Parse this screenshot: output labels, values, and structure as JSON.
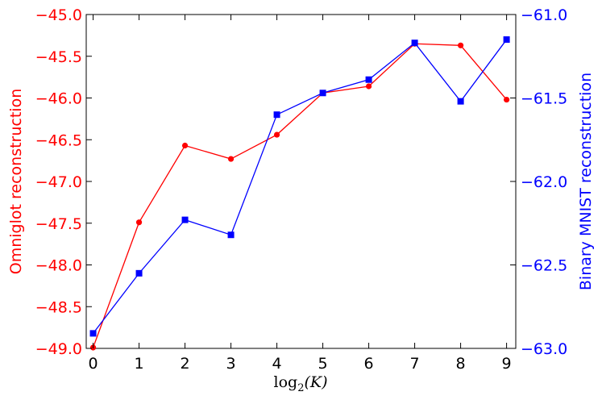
{
  "chart_data": {
    "type": "line",
    "x": [
      0,
      1,
      2,
      3,
      4,
      5,
      6,
      7,
      8,
      9
    ],
    "xlabel_parts": {
      "func": "log",
      "sub": "2",
      "arg": "(K)"
    },
    "xlim": [
      -0.15,
      9.2
    ],
    "x_ticks": [
      "0",
      "1",
      "2",
      "3",
      "4",
      "5",
      "6",
      "7",
      "8",
      "9"
    ],
    "y_left": {
      "label": "Omniglot reconstruction",
      "color": "#ff0000",
      "lim": [
        -49.0,
        -45.0
      ],
      "ticks": [
        "−45.0",
        "−45.5",
        "−46.0",
        "−46.5",
        "−47.0",
        "−47.5",
        "−48.0",
        "−48.5",
        "−49.0"
      ],
      "tick_values": [
        -45.0,
        -45.5,
        -46.0,
        -46.5,
        -47.0,
        -47.5,
        -48.0,
        -48.5,
        -49.0
      ]
    },
    "y_right": {
      "label": "Binary MNIST reconstruction",
      "color": "#0000ff",
      "lim": [
        -63.0,
        -61.0
      ],
      "ticks": [
        "−61.0",
        "−61.5",
        "−62.0",
        "−62.5",
        "−63.0"
      ],
      "tick_values": [
        -61.0,
        -61.5,
        -62.0,
        -62.5,
        -63.0
      ]
    },
    "series": [
      {
        "axis": "left",
        "color": "#ff0000",
        "marker": "circle",
        "values": [
          -48.99,
          -47.49,
          -46.57,
          -46.73,
          -46.44,
          -45.94,
          -45.86,
          -45.35,
          -45.37,
          -46.02
        ]
      },
      {
        "axis": "right",
        "color": "#0000ff",
        "marker": "square",
        "values": [
          -62.91,
          -62.55,
          -62.23,
          -62.32,
          -61.6,
          -61.47,
          -61.39,
          -61.17,
          -61.52,
          -61.15
        ]
      }
    ],
    "grid": false
  }
}
